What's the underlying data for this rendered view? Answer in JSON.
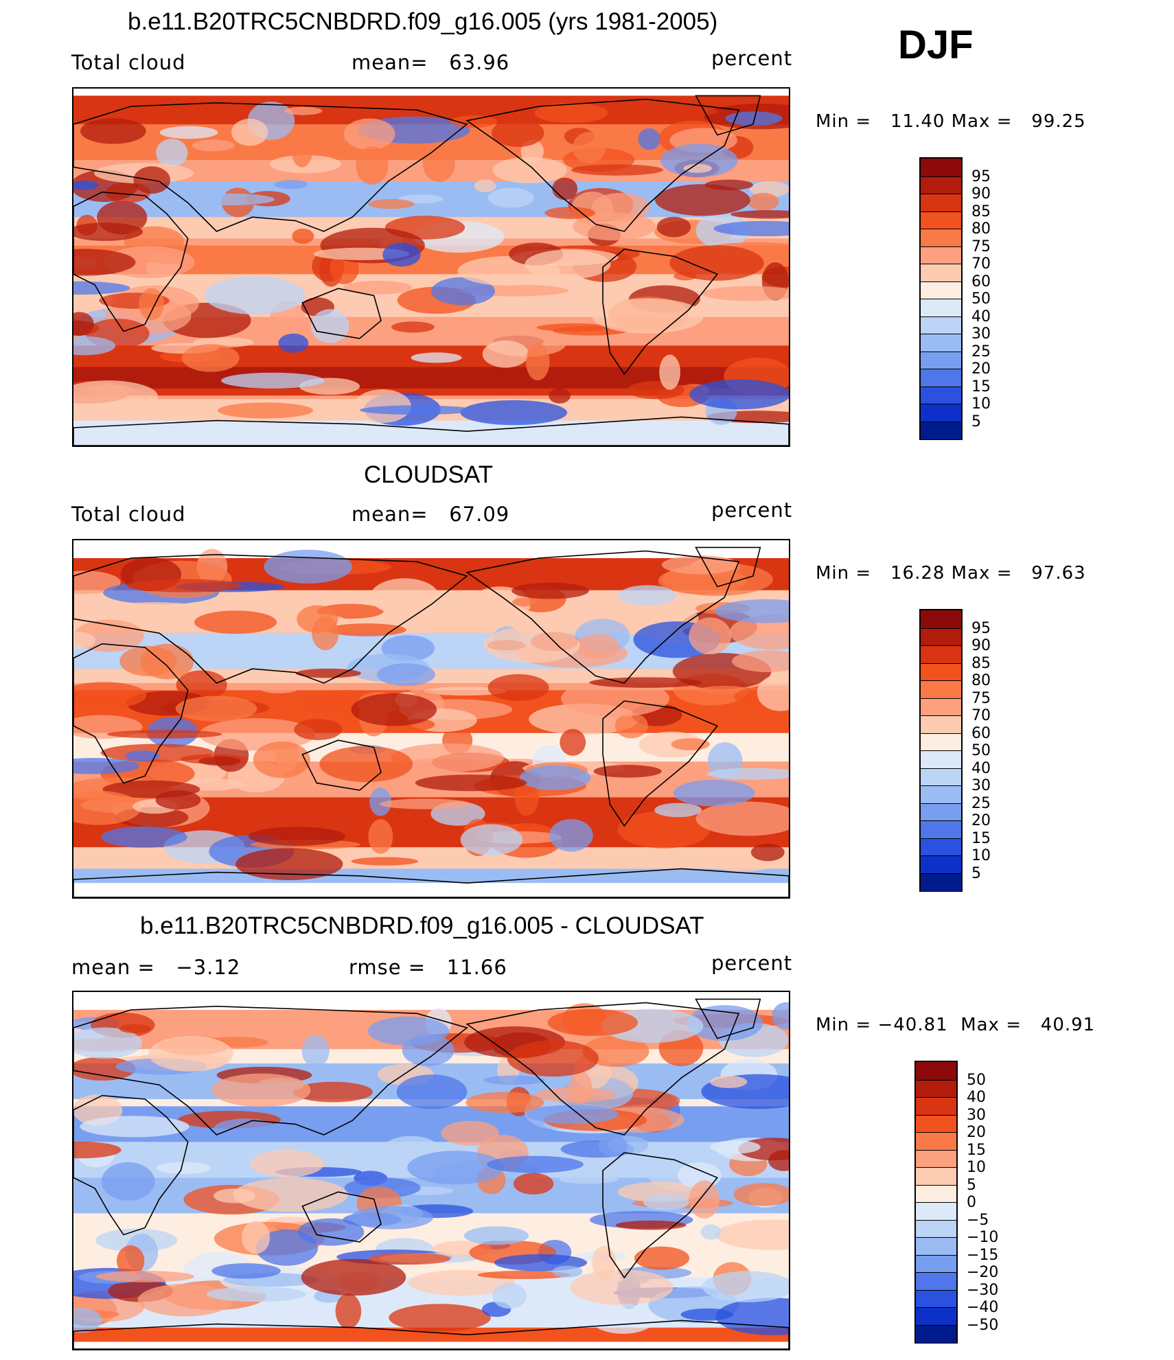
{
  "season": "DJF",
  "panels": [
    {
      "title": "b.e11.B20TRC5CNBDRD.f09_g16.005 (yrs 1981-2005)",
      "left_label": "Total cloud",
      "center_label": "mean=   63.96",
      "right_label": "percent",
      "min_max": "Min =   11.40 Max =   99.25",
      "colorbar_labels": [
        "95",
        "90",
        "85",
        "80",
        "75",
        "70",
        "60",
        "50",
        "40",
        "30",
        "25",
        "20",
        "15",
        "10",
        "5"
      ]
    },
    {
      "title": "CLOUDSAT",
      "left_label": "Total cloud",
      "center_label": "mean=   67.09",
      "right_label": "percent",
      "min_max": "Min =   16.28 Max =   97.63",
      "colorbar_labels": [
        "95",
        "90",
        "85",
        "80",
        "75",
        "70",
        "60",
        "50",
        "40",
        "30",
        "25",
        "20",
        "15",
        "10",
        "5"
      ]
    },
    {
      "title": "b.e11.B20TRC5CNBDRD.f09_g16.005 - CLOUDSAT",
      "left_label": "mean =   −3.12",
      "center_label": "rmse =   11.66",
      "right_label": "percent",
      "min_max": "Min = −40.81  Max =   40.91",
      "colorbar_labels": [
        "50",
        "40",
        "30",
        "20",
        "15",
        "10",
        "5",
        "0",
        "−5",
        "−10",
        "−15",
        "−20",
        "−30",
        "−40",
        "−50"
      ]
    }
  ],
  "colors": {
    "colorbar": [
      "#8c0a0a",
      "#b21c0c",
      "#d93512",
      "#f2521e",
      "#fa7a47",
      "#fca080",
      "#fdcbb1",
      "#fdeee1",
      "#dde9f9",
      "#bcd4f6",
      "#9bbcf3",
      "#789ef0",
      "#4f77ea",
      "#2a51df",
      "#0d31c8",
      "#001c8c"
    ]
  },
  "icons": [
    "coastline-outline",
    "contour-fill"
  ]
}
